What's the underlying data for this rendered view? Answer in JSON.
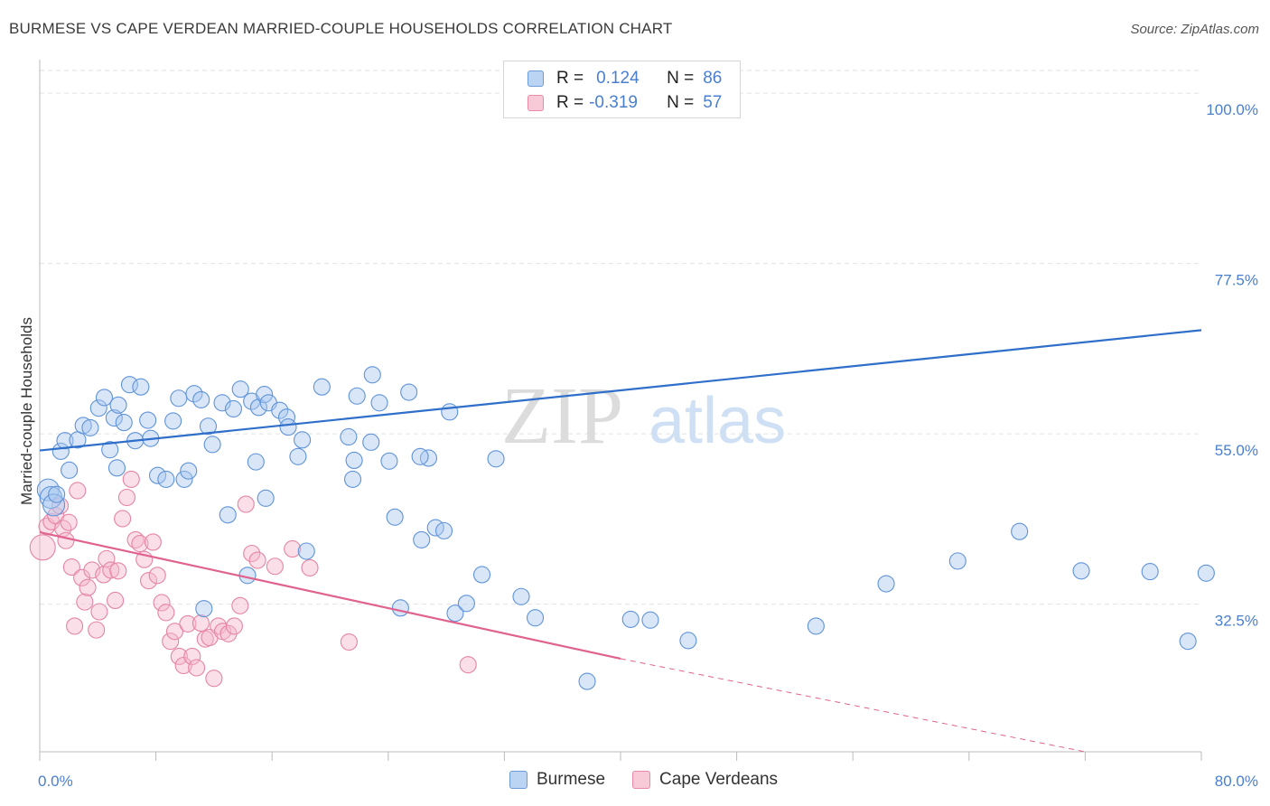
{
  "title": "BURMESE VS CAPE VERDEAN MARRIED-COUPLE HOUSEHOLDS CORRELATION CHART",
  "source": "Source: ZipAtlas.com",
  "watermark": {
    "zip": "ZIP",
    "atlas": "atlas"
  },
  "colors": {
    "blue_fill": "#a9c8f0",
    "blue_stroke": "#5f93d8",
    "blue_line": "#2f6fc9",
    "pink_fill": "#f5b8cb",
    "pink_stroke": "#e584a4",
    "pink_line": "#e0628f",
    "axis_text": "#4a7fd0",
    "grid": "#e2e2e2"
  },
  "legend": {
    "rows": [
      {
        "r_label": "R =",
        "r_value": "0.124",
        "n_label": "N =",
        "n_value": "86"
      },
      {
        "r_label": "R =",
        "r_value": "-0.319",
        "n_label": "N =",
        "n_value": "57"
      }
    ]
  },
  "chart_data": {
    "type": "scatter",
    "title": "BURMESE VS CAPE VERDEAN MARRIED-COUPLE HOUSEHOLDS CORRELATION CHART",
    "xlabel": "",
    "ylabel": "Married-couple Households",
    "xlim": [
      0,
      80
    ],
    "ylim": [
      13,
      103
    ],
    "x_tick_labels": [
      "0.0%",
      "80.0%"
    ],
    "y_tick_values": [
      32.5,
      55.0,
      77.5,
      100.0
    ],
    "y_tick_labels": [
      "32.5%",
      "55.0%",
      "77.5%",
      "100.0%"
    ],
    "series": [
      {
        "name": "Burmese",
        "regression": {
          "x0": 0,
          "y0": 52.8,
          "x1": 80,
          "y1": 68.7
        },
        "points": [
          [
            0.6,
            47.6
          ],
          [
            0.8,
            46.6
          ],
          [
            1.0,
            45.6
          ],
          [
            1.2,
            47.0
          ],
          [
            1.5,
            52.7
          ],
          [
            1.8,
            54.1
          ],
          [
            2.1,
            50.2
          ],
          [
            2.7,
            54.2
          ],
          [
            3.1,
            56.1
          ],
          [
            3.6,
            55.8
          ],
          [
            4.2,
            58.4
          ],
          [
            4.6,
            59.8
          ],
          [
            5.3,
            57.1
          ],
          [
            5.6,
            58.8
          ],
          [
            5.0,
            52.9
          ],
          [
            5.5,
            50.5
          ],
          [
            6.0,
            56.5
          ],
          [
            6.4,
            61.5
          ],
          [
            6.8,
            54.1
          ],
          [
            7.2,
            61.2
          ],
          [
            7.7,
            56.8
          ],
          [
            7.9,
            54.4
          ],
          [
            8.4,
            49.5
          ],
          [
            9.0,
            49.0
          ],
          [
            9.5,
            56.7
          ],
          [
            9.9,
            59.7
          ],
          [
            10.3,
            49.0
          ],
          [
            10.6,
            50.1
          ],
          [
            11.0,
            60.3
          ],
          [
            11.5,
            59.5
          ],
          [
            12.0,
            56.0
          ],
          [
            12.3,
            53.6
          ],
          [
            13.0,
            59.1
          ],
          [
            13.8,
            58.3
          ],
          [
            14.3,
            60.9
          ],
          [
            15.1,
            59.3
          ],
          [
            15.6,
            58.5
          ],
          [
            16.0,
            60.2
          ],
          [
            16.3,
            59.1
          ],
          [
            17.1,
            58.1
          ],
          [
            17.6,
            57.2
          ],
          [
            18.4,
            52.0
          ],
          [
            19.0,
            39.5
          ],
          [
            13.4,
            44.3
          ],
          [
            11.7,
            31.9
          ],
          [
            14.8,
            36.3
          ],
          [
            15.4,
            51.3
          ],
          [
            16.1,
            46.5
          ],
          [
            17.7,
            55.9
          ],
          [
            18.7,
            54.2
          ],
          [
            20.1,
            61.2
          ],
          [
            22.3,
            49.0
          ],
          [
            22.6,
            60.0
          ],
          [
            23.6,
            53.9
          ],
          [
            24.2,
            59.1
          ],
          [
            25.3,
            44.0
          ],
          [
            25.7,
            32.0
          ],
          [
            27.7,
            51.8
          ],
          [
            28.2,
            42.6
          ],
          [
            28.8,
            42.2
          ],
          [
            29.6,
            31.3
          ],
          [
            30.4,
            32.6
          ],
          [
            31.5,
            36.4
          ],
          [
            27.2,
            41.0
          ],
          [
            22.0,
            54.6
          ],
          [
            22.4,
            51.5
          ],
          [
            23.7,
            62.8
          ],
          [
            26.3,
            60.5
          ],
          [
            27.1,
            52.0
          ],
          [
            24.9,
            51.4
          ],
          [
            29.2,
            57.9
          ],
          [
            32.5,
            51.7
          ],
          [
            34.3,
            33.5
          ],
          [
            35.3,
            30.7
          ],
          [
            39.0,
            22.3
          ],
          [
            42.1,
            30.5
          ],
          [
            43.5,
            30.4
          ],
          [
            46.2,
            27.7
          ],
          [
            55.3,
            29.6
          ],
          [
            60.3,
            35.2
          ],
          [
            65.4,
            38.2
          ],
          [
            69.8,
            42.1
          ],
          [
            74.2,
            36.9
          ],
          [
            79.1,
            36.8
          ],
          [
            81.8,
            27.6
          ],
          [
            83.1,
            36.6
          ]
        ]
      },
      {
        "name": "Cape Verdeans",
        "regression": {
          "x0": 0,
          "y0": 42.0,
          "x1": 40,
          "y1": 25.3,
          "dashed_to_x": 72,
          "dashed_to_y": 13
        },
        "points": [
          [
            0.2,
            40.0
          ],
          [
            0.5,
            42.8
          ],
          [
            0.8,
            43.4
          ],
          [
            1.1,
            44.2
          ],
          [
            1.4,
            45.5
          ],
          [
            1.6,
            42.5
          ],
          [
            1.8,
            40.9
          ],
          [
            2.0,
            43.3
          ],
          [
            2.2,
            37.4
          ],
          [
            2.4,
            29.6
          ],
          [
            2.6,
            47.5
          ],
          [
            2.9,
            36.0
          ],
          [
            3.1,
            32.8
          ],
          [
            3.3,
            34.7
          ],
          [
            3.6,
            37.0
          ],
          [
            3.9,
            29.1
          ],
          [
            4.1,
            31.5
          ],
          [
            4.4,
            36.4
          ],
          [
            4.6,
            38.5
          ],
          [
            4.9,
            37.0
          ],
          [
            5.2,
            33.0
          ],
          [
            5.4,
            36.9
          ],
          [
            5.7,
            43.8
          ],
          [
            6.0,
            46.6
          ],
          [
            6.3,
            49.0
          ],
          [
            6.6,
            41.0
          ],
          [
            6.9,
            40.5
          ],
          [
            7.2,
            38.4
          ],
          [
            7.5,
            35.6
          ],
          [
            7.8,
            40.7
          ],
          [
            8.1,
            36.3
          ],
          [
            8.4,
            32.7
          ],
          [
            8.7,
            31.4
          ],
          [
            9.0,
            27.6
          ],
          [
            9.3,
            28.9
          ],
          [
            9.6,
            25.6
          ],
          [
            9.9,
            24.4
          ],
          [
            10.2,
            29.9
          ],
          [
            10.5,
            25.6
          ],
          [
            10.8,
            24.1
          ],
          [
            11.1,
            30.0
          ],
          [
            11.4,
            27.9
          ],
          [
            11.7,
            28.1
          ],
          [
            12.0,
            22.7
          ],
          [
            12.3,
            29.6
          ],
          [
            12.6,
            28.9
          ],
          [
            13.0,
            28.6
          ],
          [
            13.4,
            29.6
          ],
          [
            13.8,
            32.3
          ],
          [
            14.2,
            45.7
          ],
          [
            14.6,
            39.2
          ],
          [
            15.0,
            38.3
          ],
          [
            16.2,
            37.5
          ],
          [
            17.4,
            39.8
          ],
          [
            18.6,
            37.3
          ],
          [
            21.3,
            27.5
          ],
          [
            29.5,
            24.5
          ]
        ]
      }
    ]
  },
  "bottom_legend": [
    "Burmese",
    "Cape Verdeans"
  ]
}
